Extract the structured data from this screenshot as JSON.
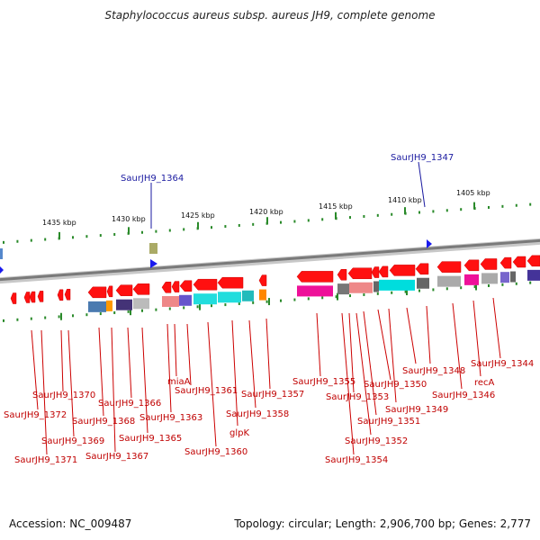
{
  "title": "Staphylococcus aureus subsp. aureus JH9, complete genome",
  "footer": {
    "accession": "Accession: NC_009487",
    "stats": "Topology: circular; Length: 2,906,700 bp; Genes: 2,777"
  },
  "colors": {
    "forward_gene": "#ff1010",
    "highlight": "#ee1199",
    "ruler_dot": "#2a8a2a",
    "backbone": "#888888",
    "forward_marker": "#1a1aee"
  },
  "scale_ticks": [
    {
      "label": "1435 kbp"
    },
    {
      "label": "1430 kbp"
    },
    {
      "label": "1425 kbp"
    },
    {
      "label": "1420 kbp"
    },
    {
      "label": "1415 kbp"
    },
    {
      "label": "1410 kbp"
    },
    {
      "label": "1405 kbp"
    }
  ],
  "forward_strand_labels": [
    {
      "label": "SaurJH9_1364"
    },
    {
      "label": "SaurJH9_1347"
    }
  ],
  "reverse_strand_labels": [
    {
      "label": "SaurJH9_1370"
    },
    {
      "label": "SaurJH9_1372"
    },
    {
      "label": "SaurJH9_1369"
    },
    {
      "label": "SaurJH9_1371"
    },
    {
      "label": "SaurJH9_1368"
    },
    {
      "label": "SaurJH9_1366"
    },
    {
      "label": "SaurJH9_1367"
    },
    {
      "label": "SaurJH9_1365"
    },
    {
      "label": "SaurJH9_1363"
    },
    {
      "label": "miaA"
    },
    {
      "label": "SaurJH9_1361"
    },
    {
      "label": "SaurJH9_1360"
    },
    {
      "label": "glpK"
    },
    {
      "label": "SaurJH9_1358"
    },
    {
      "label": "SaurJH9_1357"
    },
    {
      "label": "SaurJH9_1355"
    },
    {
      "label": "SaurJH9_1354"
    },
    {
      "label": "SaurJH9_1353"
    },
    {
      "label": "SaurJH9_1352"
    },
    {
      "label": "SaurJH9_1351"
    },
    {
      "label": "SaurJH9_1350"
    },
    {
      "label": "SaurJH9_1349"
    },
    {
      "label": "SaurJH9_1348"
    },
    {
      "label": "SaurJH9_1346"
    },
    {
      "label": "recA"
    },
    {
      "label": "SaurJH9_1344"
    }
  ]
}
